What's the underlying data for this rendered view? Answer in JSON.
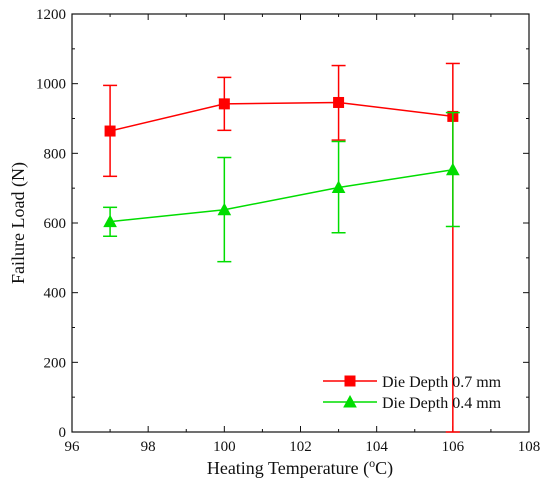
{
  "chart_data": {
    "type": "line",
    "xlabel": "Heating Temperature (",
    "xlabel_sup": "o",
    "xlabel_after_sup": "C)",
    "ylabel": "Failure Load (N)",
    "xlim": [
      96,
      108
    ],
    "ylim": [
      0,
      1200
    ],
    "x_ticks": [
      96,
      98,
      100,
      102,
      104,
      106,
      108
    ],
    "y_ticks": [
      0,
      200,
      400,
      600,
      800,
      1000,
      1200
    ],
    "legend_position": "bottom-right",
    "grid": false,
    "series": [
      {
        "name": "Die Depth 0.7 mm",
        "color": "#ff0000",
        "marker": "square",
        "x": [
          97,
          100,
          103,
          106
        ],
        "y": [
          864,
          942,
          946,
          906
        ],
        "err_low": [
          734,
          866,
          838,
          0
        ],
        "err_high": [
          995,
          1018,
          1052,
          1058
        ]
      },
      {
        "name": "Die Depth 0.4 mm",
        "color": "#00dd00",
        "marker": "triangle",
        "x": [
          97,
          100,
          103,
          106
        ],
        "y": [
          604,
          638,
          702,
          753
        ],
        "err_low": [
          562,
          489,
          572,
          590
        ],
        "err_high": [
          645,
          788,
          834,
          917
        ]
      }
    ]
  }
}
